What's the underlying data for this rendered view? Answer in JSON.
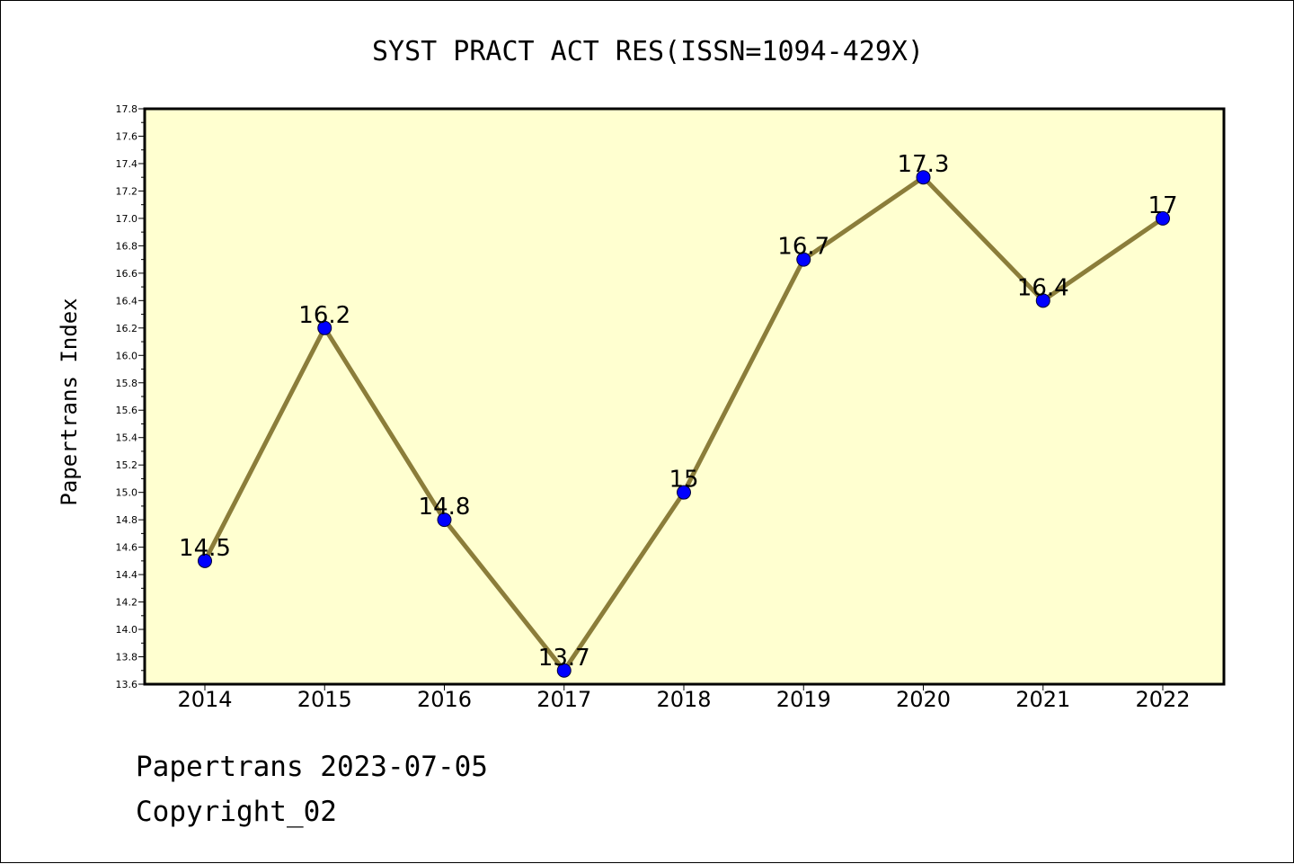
{
  "chart_data": {
    "type": "line",
    "title": "SYST PRACT ACT RES(ISSN=1094-429X)",
    "xlabel": "",
    "ylabel": "Papertrans Index",
    "categories": [
      "2014",
      "2015",
      "2016",
      "2017",
      "2018",
      "2019",
      "2020",
      "2021",
      "2022"
    ],
    "values": [
      14.5,
      16.2,
      14.8,
      13.7,
      15.0,
      16.7,
      17.3,
      16.4,
      17.0
    ],
    "data_labels": [
      "14.5",
      "16.2",
      "14.8",
      "13.7",
      "15",
      "16.7",
      "17.3",
      "16.4",
      "17"
    ],
    "ylim": [
      13.6,
      17.8
    ],
    "yticks": [
      "13.6",
      "13.8",
      "14.0",
      "14.2",
      "14.4",
      "14.6",
      "14.8",
      "15.0",
      "15.2",
      "15.4",
      "15.6",
      "15.8",
      "16.0",
      "16.2",
      "16.4",
      "16.6",
      "16.8",
      "17.0",
      "17.2",
      "17.4",
      "17.6",
      "17.8"
    ],
    "grid": false,
    "legend": "none",
    "colors": {
      "plot_background": "#ffffd0",
      "line": "#8b7d3a",
      "marker": "#0000ff"
    }
  },
  "footer": {
    "line1": "Papertrans 2023-07-05",
    "line2": "Copyright_02"
  }
}
